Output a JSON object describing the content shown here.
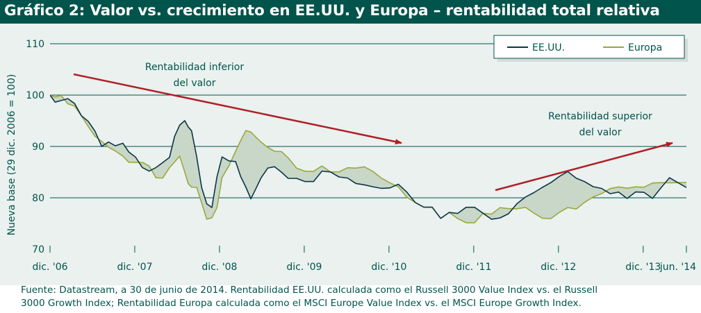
{
  "title": "Gráfico 2: Valor vs. crecimiento en EE.UU. y Europa – rentabilidad total relativa",
  "source_line1": "Fuente: Datastream, a 30 de junio de 2014. Rentabilidad EE.UU. calculada como el Russell 3000 Value Index vs. el Russell",
  "source_line2": "3000 Growth Index; Rentabilidad Europa calculada como el MSCI Europe Value Index vs. el MSCI Europe Growth Index.",
  "colors": {
    "usa": "#0c3546",
    "europe": "#9aa83a",
    "fill": "#c9d7c9",
    "arrow": "#b11e25",
    "grid": "#00544b",
    "text": "#00544b",
    "background": "#eaf1ef"
  },
  "chart_data": {
    "type": "line",
    "ylabel": "Nueva base (29 dic. 2006 = 100)",
    "ylim": [
      70,
      110
    ],
    "yticks": [
      70,
      80,
      90,
      100,
      110
    ],
    "xlim": [
      2006.99,
      2014.5
    ],
    "xticks": [
      {
        "x": 2006.99,
        "label": "dic. '06"
      },
      {
        "x": 2007.99,
        "label": "dic. '07"
      },
      {
        "x": 2008.99,
        "label": "dic. '08"
      },
      {
        "x": 2009.99,
        "label": "dic. '09"
      },
      {
        "x": 2010.99,
        "label": "dic. '10"
      },
      {
        "x": 2011.99,
        "label": "dic. '11"
      },
      {
        "x": 2012.99,
        "label": "dic. '12"
      },
      {
        "x": 2013.99,
        "label": "dic. '13"
      },
      {
        "x": 2014.5,
        "label": "jun. '14"
      }
    ],
    "grid": true,
    "legend_position": "top-right",
    "series": [
      {
        "name": "EE.UU.",
        "x": [
          2006.99,
          2007.05,
          2007.12,
          2007.2,
          2007.28,
          2007.36,
          2007.44,
          2007.52,
          2007.6,
          2007.68,
          2007.76,
          2007.85,
          2007.92,
          2008.0,
          2008.08,
          2008.16,
          2008.24,
          2008.32,
          2008.4,
          2008.46,
          2008.52,
          2008.58,
          2008.62,
          2008.66,
          2008.72,
          2008.78,
          2008.84,
          2008.9,
          2008.96,
          2009.02,
          2009.1,
          2009.18,
          2009.24,
          2009.3,
          2009.36,
          2009.42,
          2009.48,
          2009.56,
          2009.64,
          2009.72,
          2009.8,
          2009.9,
          2010.0,
          2010.1,
          2010.2,
          2010.3,
          2010.4,
          2010.5,
          2010.6,
          2010.7,
          2010.8,
          2010.9,
          2011.0,
          2011.1,
          2011.2,
          2011.3,
          2011.4,
          2011.5,
          2011.6,
          2011.7,
          2011.8,
          2011.9,
          2012.0,
          2012.1,
          2012.2,
          2012.3,
          2012.4,
          2012.5,
          2012.6,
          2012.7,
          2012.8,
          2012.9,
          2013.0,
          2013.1,
          2013.2,
          2013.3,
          2013.4,
          2013.5,
          2013.6,
          2013.7,
          2013.8,
          2013.9,
          2014.0,
          2014.1,
          2014.2,
          2014.3,
          2014.4,
          2014.5
        ],
        "values": [
          100,
          98.5,
          99,
          99.5,
          98.5,
          96,
          95,
          93,
          90,
          91,
          90,
          90.5,
          89,
          88,
          86,
          85,
          86,
          87,
          88,
          92,
          94,
          95,
          94,
          93,
          88,
          82,
          79,
          78,
          84,
          88,
          87,
          87,
          84,
          82,
          80,
          82,
          84,
          86,
          86,
          85,
          84,
          84,
          83,
          83,
          85,
          85,
          84,
          84,
          83,
          82.5,
          82,
          82,
          82,
          82.5,
          81,
          79,
          78,
          78,
          76,
          77,
          77,
          78,
          78,
          77,
          76,
          76,
          77,
          79,
          80,
          81,
          82,
          83,
          84,
          85,
          84,
          83,
          82,
          82,
          81,
          81,
          80,
          81,
          81,
          80,
          82,
          84,
          83,
          82
        ]
      },
      {
        "name": "Europa",
        "x": [
          2006.99,
          2007.05,
          2007.12,
          2007.2,
          2007.28,
          2007.36,
          2007.44,
          2007.52,
          2007.6,
          2007.68,
          2007.76,
          2007.85,
          2007.92,
          2008.0,
          2008.08,
          2008.16,
          2008.24,
          2008.32,
          2008.4,
          2008.46,
          2008.52,
          2008.58,
          2008.62,
          2008.66,
          2008.72,
          2008.78,
          2008.84,
          2008.9,
          2008.96,
          2009.02,
          2009.1,
          2009.18,
          2009.24,
          2009.3,
          2009.36,
          2009.42,
          2009.48,
          2009.56,
          2009.64,
          2009.72,
          2009.8,
          2009.9,
          2010.0,
          2010.1,
          2010.2,
          2010.3,
          2010.4,
          2010.5,
          2010.6,
          2010.7,
          2010.8,
          2010.9,
          2011.0,
          2011.1,
          2011.2,
          2011.3,
          2011.4,
          2011.5,
          2011.6,
          2011.7,
          2011.8,
          2011.9,
          2012.0,
          2012.1,
          2012.2,
          2012.3,
          2012.4,
          2012.5,
          2012.6,
          2012.7,
          2012.8,
          2012.9,
          2013.0,
          2013.1,
          2013.2,
          2013.3,
          2013.4,
          2013.5,
          2013.6,
          2013.7,
          2013.8,
          2013.9,
          2014.0,
          2014.1,
          2014.2,
          2014.3,
          2014.4,
          2014.5
        ],
        "values": [
          100,
          99.5,
          100,
          98.5,
          98,
          96,
          94,
          92,
          91,
          90,
          89,
          88,
          87,
          87,
          87,
          86,
          84,
          84,
          86,
          87,
          88,
          85,
          83,
          82,
          82,
          79,
          76,
          76,
          78,
          84,
          86,
          89,
          91,
          93,
          93,
          92,
          91,
          90,
          89,
          89,
          88,
          86,
          85,
          85,
          86,
          85,
          85,
          86,
          86,
          86,
          85,
          84,
          83,
          82,
          80,
          79,
          78,
          78,
          76,
          77,
          76,
          75,
          75,
          77,
          77,
          78,
          78,
          78,
          78,
          77,
          76,
          76,
          77,
          78,
          78,
          79,
          80,
          81,
          82,
          82,
          82,
          82,
          82,
          83,
          83,
          83,
          83,
          83
        ]
      }
    ],
    "annotations": [
      {
        "line1": "Rentabilidad inferior",
        "line2": "del valor"
      },
      {
        "line1": "Rentabilidad superior",
        "line2": "del valor"
      }
    ]
  }
}
